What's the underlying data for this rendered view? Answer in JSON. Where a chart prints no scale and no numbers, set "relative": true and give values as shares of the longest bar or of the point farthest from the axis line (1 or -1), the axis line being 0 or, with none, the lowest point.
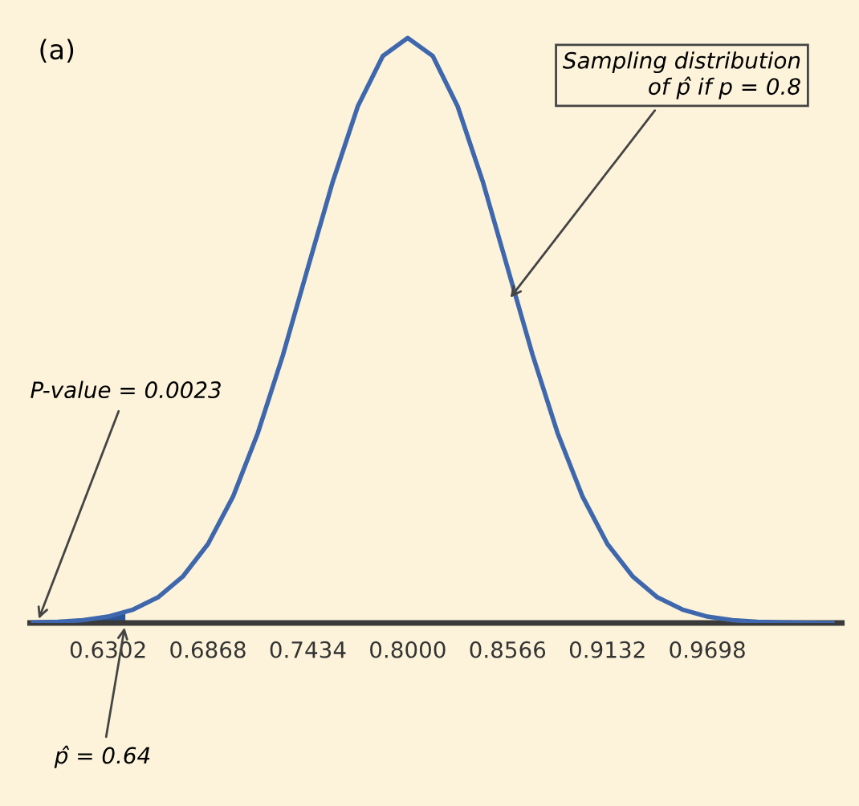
{
  "chart_data": {
    "type": "line",
    "relative": true,
    "legend": false,
    "grid": false,
    "marker": "none",
    "line_style": "solid",
    "xlim": [
      0.586,
      1.046
    ],
    "xticks": [
      {
        "value": 0.6302,
        "label": "0.6302"
      },
      {
        "value": 0.6868,
        "label": "0.6868"
      },
      {
        "value": 0.7434,
        "label": "0.7434"
      },
      {
        "value": 0.8,
        "label": "0.8000"
      },
      {
        "value": 0.8566,
        "label": "0.8566"
      },
      {
        "value": 0.9132,
        "label": "0.9132"
      },
      {
        "value": 0.9698,
        "label": "0.9698"
      }
    ],
    "series": [
      {
        "color": "#3e67ad",
        "x": [
          0.5878,
          0.6019,
          0.6161,
          0.6302,
          0.6444,
          0.6585,
          0.6727,
          0.6868,
          0.701,
          0.7151,
          0.7293,
          0.7434,
          0.7576,
          0.7717,
          0.7859,
          0.8,
          0.8142,
          0.8283,
          0.8425,
          0.8566,
          0.8708,
          0.8849,
          0.8991,
          0.9132,
          0.9274,
          0.9415,
          0.9557,
          0.9698,
          0.984,
          0.9981,
          1.0123,
          1.0264,
          1.0406
        ],
        "values": [
          0.001,
          0.002,
          0.005,
          0.011,
          0.023,
          0.044,
          0.08,
          0.135,
          0.216,
          0.325,
          0.458,
          0.607,
          0.755,
          0.883,
          0.969,
          1,
          0.969,
          0.883,
          0.755,
          0.607,
          0.458,
          0.325,
          0.216,
          0.135,
          0.08,
          0.044,
          0.023,
          0.011,
          0.005,
          0.002,
          0.001,
          0.0003,
          0.0001
        ]
      },
      {
        "type": "area",
        "color": "#2c5496",
        "x": [
          0.5878,
          0.6019,
          0.6161,
          0.6302,
          0.64
        ],
        "values": [
          0.001,
          0.002,
          0.005,
          0.011,
          0.018
        ]
      }
    ],
    "annotations": [
      "(a)",
      {
        "text": "Sampling distribution\nof p̂ if p = 0.8",
        "x": 0.8566,
        "y": 0.55
      },
      {
        "text": "P-value = 0.0023",
        "x": 0.59,
        "y": 0.0
      },
      {
        "text": "p̂ = 0.64",
        "x": 0.64,
        "y": 0.0
      }
    ]
  }
}
